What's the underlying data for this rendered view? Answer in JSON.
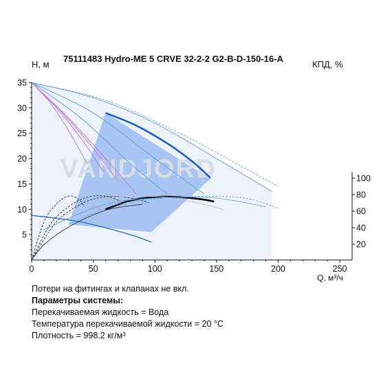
{
  "chart_data": {
    "type": "line",
    "title": "75111483 Hydro-ME 5 CRVE 32-2-2 G2-B-D-150-16-A",
    "ylabel_left": "H, м",
    "ylabel_right": "КПД, %",
    "xlabel": "Q, м³/ч",
    "xlim": [
      0,
      260
    ],
    "ylim_left": [
      0,
      35
    ],
    "ylim_right": [
      0,
      110
    ],
    "x_ticks": [
      0,
      50,
      100,
      150,
      200,
      250
    ],
    "y_ticks_left": [
      5,
      10,
      15,
      20,
      25,
      30,
      35
    ],
    "y_ticks_right": [
      20,
      40,
      60,
      80,
      100
    ],
    "watermark": "VANDJORD",
    "grid": false,
    "operating_area": [
      [
        30,
        7
      ],
      [
        60,
        29
      ],
      [
        145,
        16
      ],
      [
        97,
        5.5
      ]
    ],
    "series": [
      {
        "role": "head-main",
        "color": "#1f5fc4",
        "width": 2.6,
        "points": [
          [
            60,
            29
          ],
          [
            85,
            26.5
          ],
          [
            110,
            23
          ],
          [
            130,
            19.5
          ],
          [
            145,
            16.2
          ]
        ]
      },
      {
        "role": "head-max",
        "color": "#6fa3da",
        "width": 1,
        "points": [
          [
            0,
            35
          ],
          [
            50,
            32
          ],
          [
            100,
            27
          ],
          [
            150,
            20
          ],
          [
            195,
            13.5
          ]
        ]
      },
      {
        "role": "head-max-dashed",
        "color": "#6fa3da",
        "width": 1,
        "dashed": true,
        "points": [
          [
            0,
            35
          ],
          [
            60,
            31.5
          ],
          [
            120,
            25
          ],
          [
            170,
            18.5
          ],
          [
            200,
            14.5
          ]
        ]
      },
      {
        "role": "head-reduced",
        "color": "#6fa3da",
        "width": 1,
        "points": [
          [
            0,
            35
          ],
          [
            50,
            29
          ],
          [
            100,
            20
          ],
          [
            140,
            13
          ]
        ]
      },
      {
        "role": "head-reduced",
        "color": "#6fa3da",
        "width": 1,
        "points": [
          [
            0,
            35
          ],
          [
            40,
            28
          ],
          [
            80,
            19
          ],
          [
            110,
            13
          ]
        ]
      },
      {
        "role": "head-min",
        "color": "#2f6fc6",
        "width": 1.4,
        "points": [
          [
            0,
            8.8
          ],
          [
            40,
            7.5
          ],
          [
            80,
            5
          ],
          [
            97,
            3.5
          ]
        ]
      },
      {
        "role": "power",
        "color": "#c57fd8",
        "width": 1,
        "points": [
          [
            0,
            35
          ],
          [
            30,
            28
          ],
          [
            60,
            20
          ],
          [
            85,
            13
          ]
        ]
      },
      {
        "role": "power",
        "color": "#c57fd8",
        "width": 1,
        "points": [
          [
            0,
            35
          ],
          [
            25,
            29
          ],
          [
            50,
            22
          ],
          [
            70,
            15.5
          ]
        ]
      },
      {
        "role": "power",
        "color": "#c57fd8",
        "width": 1,
        "points": [
          [
            0,
            35
          ],
          [
            20,
            30
          ],
          [
            40,
            24
          ],
          [
            58,
            17.5
          ]
        ]
      },
      {
        "role": "power",
        "color": "#c57fd8",
        "width": 1,
        "points": [
          [
            0,
            35
          ],
          [
            15,
            31
          ],
          [
            30,
            25.5
          ],
          [
            45,
            19
          ]
        ]
      },
      {
        "role": "efficiency-main",
        "color": "#000000",
        "width": 2.6,
        "points": [
          [
            60,
            10
          ],
          [
            80,
            11.7
          ],
          [
            100,
            12.4
          ],
          [
            120,
            12.4
          ],
          [
            140,
            11.9
          ],
          [
            148,
            11.5
          ]
        ]
      },
      {
        "role": "efficiency",
        "color": "#333333",
        "width": 0.9,
        "dashed": true,
        "points": [
          [
            0,
            0
          ],
          [
            20,
            7.5
          ],
          [
            40,
            11
          ],
          [
            55,
            12.3
          ],
          [
            70,
            12.5
          ],
          [
            85,
            12
          ],
          [
            95,
            11.3
          ]
        ]
      },
      {
        "role": "efficiency",
        "color": "#333333",
        "width": 0.9,
        "dashed": true,
        "points": [
          [
            0,
            0
          ],
          [
            15,
            7
          ],
          [
            30,
            10.5
          ],
          [
            45,
            12.4
          ],
          [
            60,
            12.6
          ],
          [
            72,
            11.6
          ]
        ]
      },
      {
        "role": "efficiency",
        "color": "#333333",
        "width": 0.9,
        "dashed": true,
        "points": [
          [
            0,
            0
          ],
          [
            10,
            7.5
          ],
          [
            20,
            11
          ],
          [
            30,
            12.6
          ],
          [
            38,
            12
          ],
          [
            43,
            10.5
          ]
        ]
      },
      {
        "role": "efficiency",
        "color": "#333333",
        "width": 0.9,
        "points": [
          [
            0,
            0
          ],
          [
            10,
            3
          ],
          [
            30,
            6.5
          ],
          [
            60,
            9.8
          ],
          [
            90,
            11
          ]
        ]
      },
      {
        "role": "efficiency-dashed",
        "color": "#6fa3da",
        "width": 0.9,
        "dashed": true,
        "points": [
          [
            30,
            7
          ],
          [
            70,
            11
          ],
          [
            120,
            12.4
          ],
          [
            170,
            12.3
          ],
          [
            200,
            10.2
          ]
        ]
      },
      {
        "role": "efficiency",
        "color": "#6fa3da",
        "width": 0.9,
        "points": [
          [
            10,
            6
          ],
          [
            60,
            11
          ],
          [
            110,
            12.3
          ],
          [
            150,
            12.2
          ],
          [
            190,
            10.5
          ]
        ]
      },
      {
        "role": "efficiency",
        "color": "#b9c7d8",
        "width": 0.9,
        "points": [
          [
            20,
            8
          ],
          [
            60,
            12
          ],
          [
            100,
            12.5
          ],
          [
            130,
            11.5
          ],
          [
            155,
            10
          ]
        ]
      }
    ]
  },
  "notes": {
    "line1": "Потери на фитингах и клапанах не вкл.",
    "header": "Параметры системы:",
    "line2": "Перекачиваемая жидкость = Вода",
    "line3": "Температура перекачиваемой жидкости = 20 °C",
    "line4": "Плотность = 998.2 кг/м³"
  }
}
